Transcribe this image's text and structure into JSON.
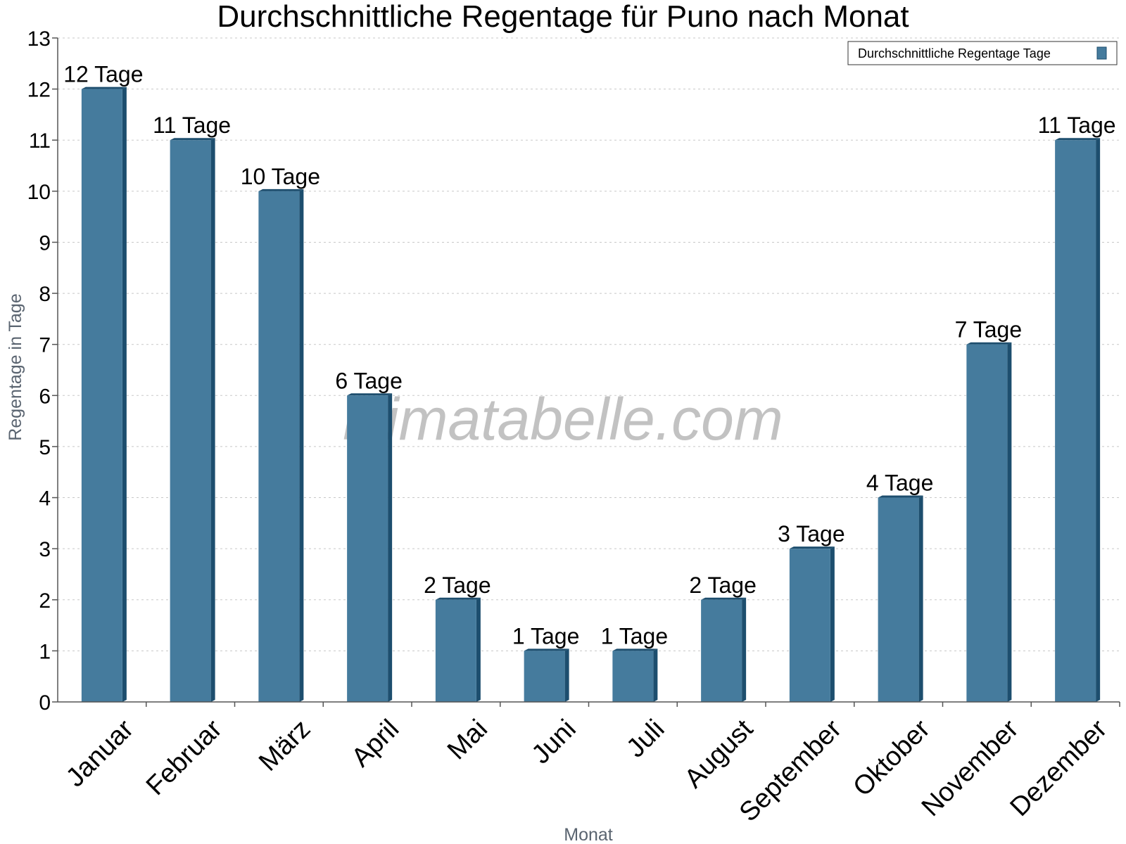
{
  "chart_data": {
    "type": "bar",
    "title": "Durchschnittliche Regentage für Puno nach Monat",
    "xlabel": "Monat",
    "ylabel": "Regentage in Tage",
    "categories": [
      "Januar",
      "Februar",
      "März",
      "April",
      "Mai",
      "Juni",
      "Juli",
      "August",
      "September",
      "Oktober",
      "November",
      "Dezember"
    ],
    "series": [
      {
        "name": "Durchschnittliche Regentage Tage",
        "values": [
          12,
          11,
          10,
          6,
          2,
          1,
          1,
          2,
          3,
          4,
          7,
          11
        ],
        "labels": [
          "12 Tage",
          "11 Tage",
          "10 Tage",
          "6 Tage",
          "2 Tage",
          "1 Tage",
          "1 Tage",
          "2 Tage",
          "3 Tage",
          "4 Tage",
          "7 Tage",
          "11 Tage"
        ]
      }
    ],
    "ylim": [
      0,
      13
    ],
    "yticks": [
      "0",
      "1",
      "2",
      "3",
      "4",
      "5",
      "6",
      "7",
      "8",
      "9",
      "10",
      "11",
      "12",
      "13"
    ],
    "grid": true,
    "legend_position": "top-right",
    "colors": {
      "bar": "#457b9d",
      "bar_side": "#1d4e6e",
      "bar_top": "#1d4e6e"
    },
    "watermark": "klimatabelle.com"
  }
}
